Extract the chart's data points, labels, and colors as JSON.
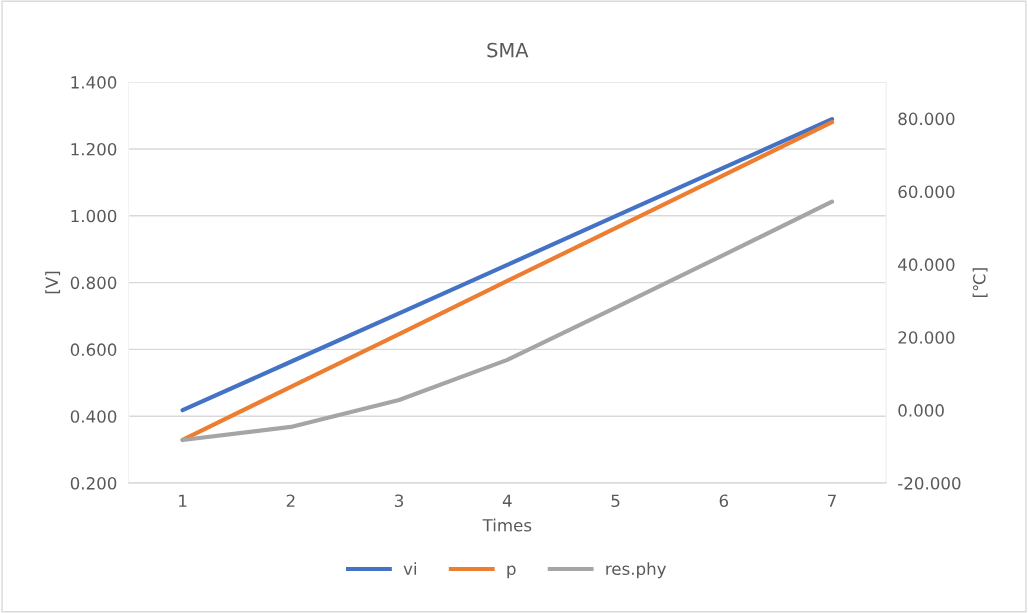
{
  "chart_data": {
    "type": "line",
    "title": "SMA",
    "xlabel": "Times",
    "ylabel": "[V]",
    "y2label": "[℃]",
    "categories": [
      "1",
      "2",
      "3",
      "4",
      "5",
      "6",
      "7"
    ],
    "series": [
      {
        "name": "vi",
        "color": "#4472c4",
        "values": [
          0.418,
          0.563,
          0.708,
          0.853,
          0.999,
          1.144,
          1.289
        ]
      },
      {
        "name": "p",
        "color": "#ed7d31",
        "values": [
          0.329,
          0.488,
          0.646,
          0.805,
          0.963,
          1.122,
          1.28
        ]
      },
      {
        "name": "res.phy",
        "color": "#a5a5a5",
        "axis": "y2",
        "values": [
          -8.2,
          -4.6,
          2.8,
          13.8,
          28.1,
          42.6,
          57.2
        ]
      }
    ],
    "ylim": [
      0.2,
      1.4
    ],
    "yticks": [
      {
        "value": 0.2,
        "label": "0.200"
      },
      {
        "value": 0.4,
        "label": "0.400"
      },
      {
        "value": 0.6,
        "label": "0.600"
      },
      {
        "value": 0.8,
        "label": "0.800"
      },
      {
        "value": 1.0,
        "label": "1.000"
      },
      {
        "value": 1.2,
        "label": "1.200"
      },
      {
        "value": 1.4,
        "label": "1.400"
      }
    ],
    "y2lim": [
      -20,
      90
    ],
    "y2ticks": [
      {
        "value": -20,
        "label": "-20.000"
      },
      {
        "value": 0,
        "label": "0.000"
      },
      {
        "value": 20,
        "label": "20.000"
      },
      {
        "value": 40,
        "label": "40.000"
      },
      {
        "value": 60,
        "label": "60.000"
      },
      {
        "value": 80,
        "label": "80.000"
      }
    ],
    "grid": "y",
    "legend": "bottom",
    "marker": "none",
    "line_style": "solid"
  }
}
